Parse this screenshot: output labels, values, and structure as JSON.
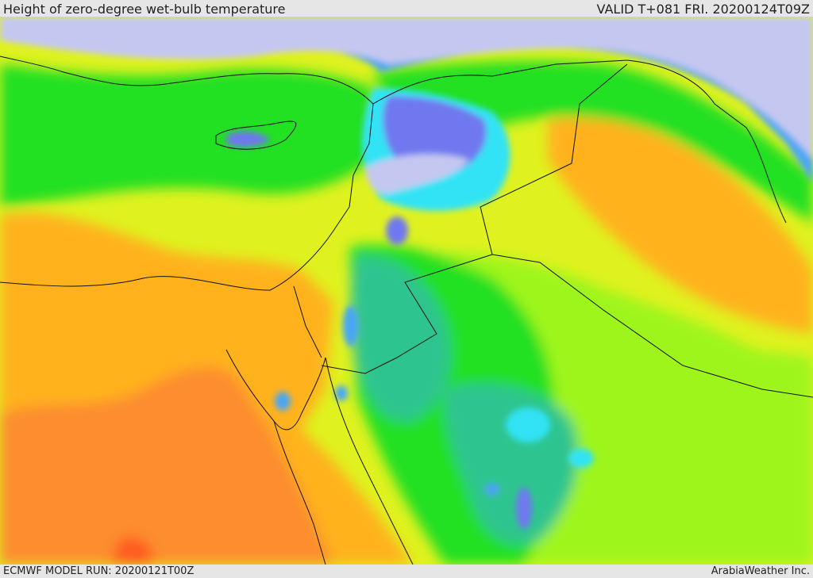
{
  "header": {
    "title": "Height of zero-degree wet-bulb temperature",
    "valid": "VALID T+081 FRI. 20200124T09Z"
  },
  "footer": {
    "model_run": "ECMWF MODEL RUN: 20200121T00Z",
    "credit": "ArabiaWeather Inc."
  },
  "palette": {
    "lowest": "#c4c8f0",
    "very_low": "#6f78f0",
    "low": "#4aa6f5",
    "cyan": "#31e3f5",
    "teal": "#2ec48f",
    "green": "#20e020",
    "light_green": "#9ef51a",
    "yellow": "#dff21f",
    "light_orange": "#ffb21b",
    "orange": "#fd8d2e",
    "red_orange": "#ff5a24",
    "border_line": "#111111"
  }
}
